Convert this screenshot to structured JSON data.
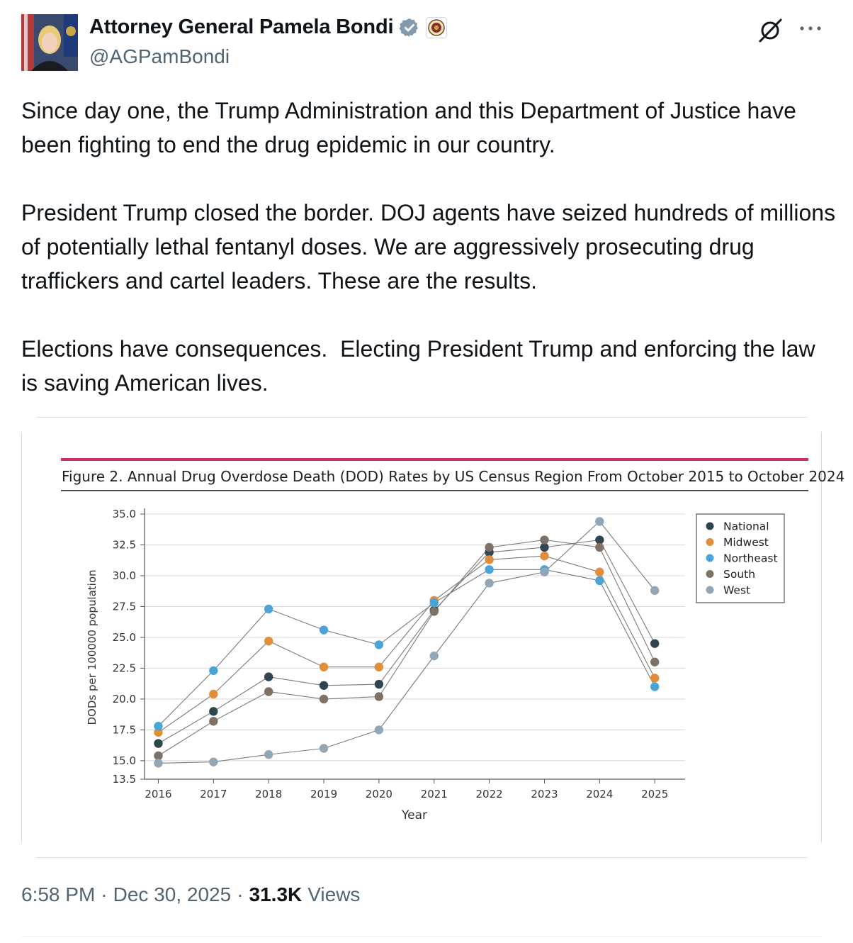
{
  "author": {
    "display_name": "Attorney General Pamela Bondi",
    "handle": "@AGPamBondi"
  },
  "icons": {
    "verified": "verified-badge-icon",
    "affiliate": "doj-seal-icon",
    "grok": "grok-icon",
    "more": "more-icon"
  },
  "tweet": {
    "text": "Since day one, the Trump Administration and this Department of Justice have been fighting to end the drug epidemic in our country.\n\nPresident Trump closed the border. DOJ agents have seized hundreds of millions of potentially lethal fentanyl doses. We are aggressively prosecuting drug traffickers and cartel leaders. These are the results.\n\nElections have consequences.  Electing President Trump and enforcing the law is saving American lives."
  },
  "meta": {
    "time": "6:58 PM",
    "sep1": "·",
    "date": "Dec 30, 2025",
    "sep2": "·",
    "views_count": "31.3K",
    "views_label": "Views"
  },
  "colors": {
    "accent_bar": "#c8336b",
    "verified": "#829aab"
  },
  "chart_data": {
    "type": "line",
    "title": "Figure 2. Annual Drug Overdose Death (DOD) Rates by US Census Region From October 2015 to October 2024",
    "xlabel": "Year",
    "ylabel": "DODs per 100000 population",
    "x": [
      2016,
      2017,
      2018,
      2019,
      2020,
      2021,
      2022,
      2023,
      2024,
      2025
    ],
    "x_tick_labels": [
      "2016",
      "2017",
      "2018",
      "2019",
      "2020",
      "2021",
      "2022",
      "2023",
      "2024",
      "2025"
    ],
    "y_ticks": [
      13.5,
      15.0,
      17.5,
      20.0,
      22.5,
      25.0,
      27.5,
      30.0,
      32.5,
      35.0
    ],
    "y_tick_labels": [
      "13.5",
      "15.0",
      "17.5",
      "20.0",
      "22.5",
      "25.0",
      "27.5",
      "30.0",
      "32.5",
      "35.0"
    ],
    "ylim": [
      13.5,
      35.0
    ],
    "grid": "horizontal",
    "legend_position": "top-right",
    "series": [
      {
        "name": "National",
        "color": "#2f4550",
        "values": [
          16.4,
          19.0,
          21.8,
          21.1,
          21.2,
          27.2,
          31.9,
          32.3,
          32.9,
          24.5
        ]
      },
      {
        "name": "Midwest",
        "color": "#e08e3c",
        "values": [
          17.3,
          20.4,
          24.7,
          22.6,
          22.6,
          28.0,
          31.3,
          31.6,
          30.3,
          21.7
        ]
      },
      {
        "name": "Northeast",
        "color": "#4aa4d8",
        "values": [
          17.8,
          22.3,
          27.3,
          25.6,
          24.4,
          27.8,
          30.5,
          30.5,
          29.6,
          21.0
        ]
      },
      {
        "name": "South",
        "color": "#7d7265",
        "values": [
          15.4,
          18.2,
          20.6,
          20.0,
          20.2,
          27.1,
          32.3,
          32.9,
          32.3,
          23.0
        ]
      },
      {
        "name": "West",
        "color": "#92a6b6",
        "values": [
          14.8,
          14.9,
          15.5,
          16.0,
          17.5,
          23.5,
          29.4,
          30.3,
          34.4,
          28.8
        ]
      }
    ]
  }
}
